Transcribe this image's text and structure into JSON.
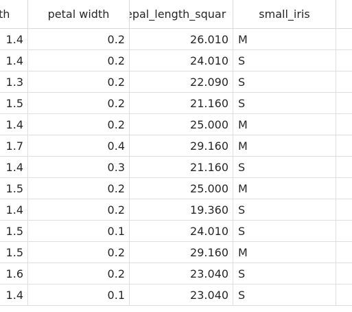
{
  "columns": [
    {
      "label": "th"
    },
    {
      "label": "petal width"
    },
    {
      "label": "epal_length_squar"
    },
    {
      "label": "small_iris"
    },
    {
      "label": ""
    }
  ],
  "rows": [
    [
      "1.4",
      "0.2",
      "26.010",
      "M"
    ],
    [
      "1.4",
      "0.2",
      "24.010",
      "S"
    ],
    [
      "1.3",
      "0.2",
      "22.090",
      "S"
    ],
    [
      "1.5",
      "0.2",
      "21.160",
      "S"
    ],
    [
      "1.4",
      "0.2",
      "25.000",
      "M"
    ],
    [
      "1.7",
      "0.4",
      "29.160",
      "M"
    ],
    [
      "1.4",
      "0.3",
      "21.160",
      "S"
    ],
    [
      "1.5",
      "0.2",
      "25.000",
      "M"
    ],
    [
      "1.4",
      "0.2",
      "19.360",
      "S"
    ],
    [
      "1.5",
      "0.1",
      "24.010",
      "S"
    ],
    [
      "1.5",
      "0.2",
      "29.160",
      "M"
    ],
    [
      "1.6",
      "0.2",
      "23.040",
      "S"
    ],
    [
      "1.4",
      "0.1",
      "23.040",
      "S"
    ]
  ]
}
